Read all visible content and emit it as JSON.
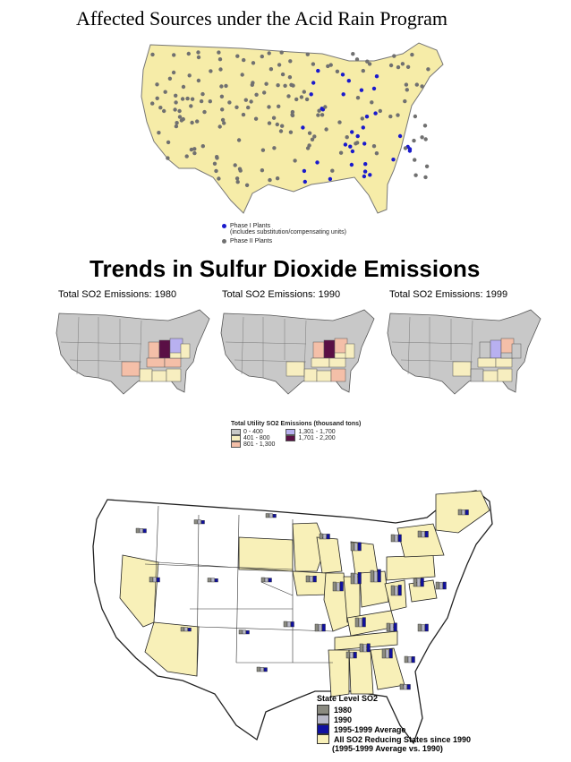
{
  "top_map": {
    "title": "Affected Sources under the Acid Rain Program",
    "legend": {
      "phase1_label": "Phase I Plants",
      "phase1_note": "(includes substitution/compensating units)",
      "phase2_label": "Phase II Plants"
    },
    "colors": {
      "land": "#f6eca8",
      "phase1": "#1a1acc",
      "phase2": "#707070"
    }
  },
  "trends": {
    "heading": "Trends in Sulfur Dioxide Emissions",
    "maps": [
      {
        "label": "Total SO2 Emissions: 1980"
      },
      {
        "label": "Total SO2 Emissions: 1990"
      },
      {
        "label": "Total SO2 Emissions: 1999"
      }
    ],
    "legend": {
      "title": "Total Utility SO2 Emissions (thousand tons)",
      "items": [
        {
          "label": "0 - 400",
          "color": "#c8c8c8"
        },
        {
          "label": "401 - 800",
          "color": "#f7eec0"
        },
        {
          "label": "801 - 1,300",
          "color": "#f4bfa8"
        },
        {
          "label": "1,301 - 1,700",
          "color": "#b8b0f0"
        },
        {
          "label": "1,701 - 2,200",
          "color": "#5a0f45"
        }
      ]
    }
  },
  "bottom_map": {
    "legend": {
      "title": "State Level SO2",
      "items": [
        {
          "label": "1980",
          "color": "#8a8a80"
        },
        {
          "label": "1990",
          "color": "#b8b8c8"
        },
        {
          "label": "1995-1999 Average",
          "color": "#1010a0"
        },
        {
          "label": "All SO2 Reducing States since 1990",
          "color": "#f8f0b8"
        }
      ],
      "note": "(1995-1999 Average vs. 1990)"
    }
  }
}
